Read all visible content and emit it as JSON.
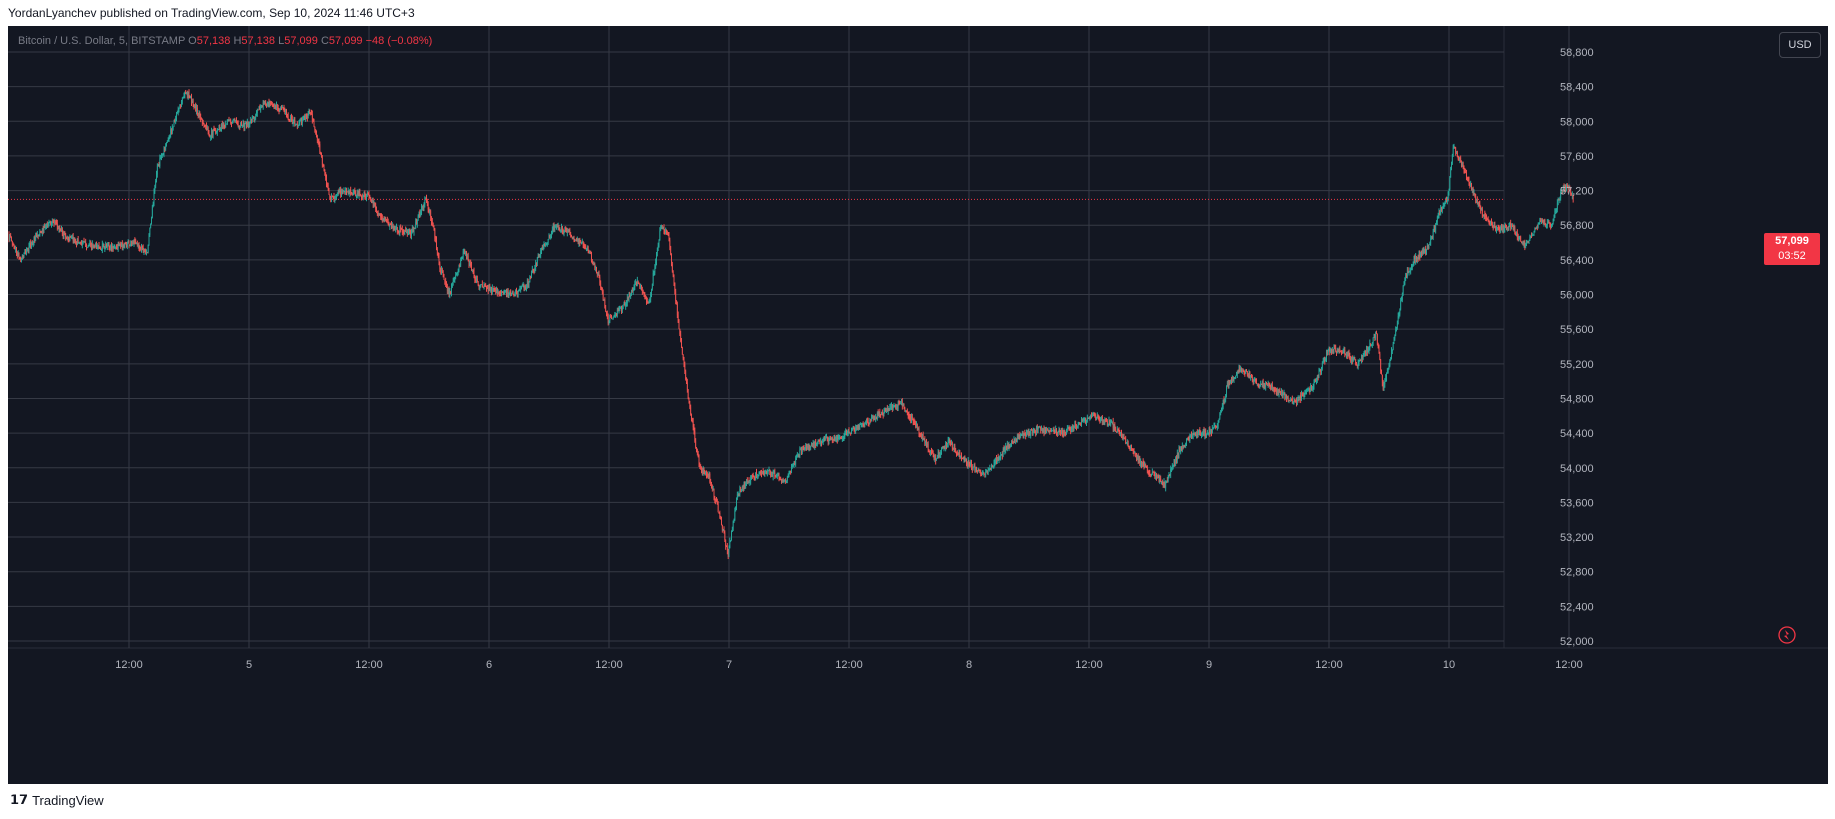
{
  "header": {
    "caption": "YordanLyanchev published on TradingView.com, Sep 10, 2024 11:46 UTC+3"
  },
  "legend": {
    "symbol": "Bitcoin / U.S. Dollar, 5, BITSTAMP",
    "o_label": "O",
    "o_value": "57,138",
    "h_label": "H",
    "h_value": "57,138",
    "l_label": "L",
    "l_value": "57,099",
    "c_label": "C",
    "c_value": "57,099",
    "change": "−48 (−0.08%)"
  },
  "currency_button": "USD",
  "last_price": {
    "price": "57,099",
    "countdown": "03:52"
  },
  "footer": {
    "brand": "TradingView"
  },
  "colors": {
    "background": "#131722",
    "grid": "#363a45",
    "up": "#26a69a",
    "down": "#ef5350",
    "price_label": "#f23645",
    "axis_text": "#b2b5be"
  },
  "chart_data": {
    "type": "candlestick",
    "title": "Bitcoin / U.S. Dollar, 5, BITSTAMP",
    "interval": "5",
    "ylim": [
      52000,
      59100
    ],
    "y_ticks": [
      52000,
      52400,
      52800,
      53200,
      53600,
      54000,
      54400,
      54800,
      55200,
      55600,
      56000,
      56400,
      56800,
      57200,
      57600,
      58000,
      58400,
      58800
    ],
    "x_ticks": [
      {
        "label": "12:00",
        "day": 0.5
      },
      {
        "label": "5",
        "day": 1.0
      },
      {
        "label": "12:00",
        "day": 1.5
      },
      {
        "label": "6",
        "day": 2.0
      },
      {
        "label": "12:00",
        "day": 2.5
      },
      {
        "label": "7",
        "day": 3.0
      },
      {
        "label": "12:00",
        "day": 3.5
      },
      {
        "label": "8",
        "day": 4.0
      },
      {
        "label": "12:00",
        "day": 4.5
      },
      {
        "label": "9",
        "day": 5.0
      },
      {
        "label": "12:00",
        "day": 5.5
      },
      {
        "label": "10",
        "day": 6.0
      },
      {
        "label": "12:00",
        "day": 6.5
      }
    ],
    "price_path": [
      {
        "day": 0.0,
        "price": 56700
      },
      {
        "day": 0.05,
        "price": 56400
      },
      {
        "day": 0.1,
        "price": 56600
      },
      {
        "day": 0.18,
        "price": 56850
      },
      {
        "day": 0.25,
        "price": 56650
      },
      {
        "day": 0.35,
        "price": 56550
      },
      {
        "day": 0.45,
        "price": 56550
      },
      {
        "day": 0.52,
        "price": 56600
      },
      {
        "day": 0.58,
        "price": 56500
      },
      {
        "day": 0.62,
        "price": 57450
      },
      {
        "day": 0.68,
        "price": 57900
      },
      {
        "day": 0.74,
        "price": 58350
      },
      {
        "day": 0.78,
        "price": 58150
      },
      {
        "day": 0.84,
        "price": 57850
      },
      {
        "day": 0.92,
        "price": 58000
      },
      {
        "day": 1.0,
        "price": 57950
      },
      {
        "day": 1.06,
        "price": 58200
      },
      {
        "day": 1.14,
        "price": 58150
      },
      {
        "day": 1.2,
        "price": 57950
      },
      {
        "day": 1.26,
        "price": 58100
      },
      {
        "day": 1.3,
        "price": 57650
      },
      {
        "day": 1.34,
        "price": 57100
      },
      {
        "day": 1.4,
        "price": 57200
      },
      {
        "day": 1.46,
        "price": 57150
      },
      {
        "day": 1.5,
        "price": 57150
      },
      {
        "day": 1.55,
        "price": 56900
      },
      {
        "day": 1.62,
        "price": 56750
      },
      {
        "day": 1.68,
        "price": 56700
      },
      {
        "day": 1.74,
        "price": 57100
      },
      {
        "day": 1.77,
        "price": 56800
      },
      {
        "day": 1.8,
        "price": 56300
      },
      {
        "day": 1.84,
        "price": 56000
      },
      {
        "day": 1.9,
        "price": 56500
      },
      {
        "day": 1.96,
        "price": 56100
      },
      {
        "day": 2.02,
        "price": 56050
      },
      {
        "day": 2.1,
        "price": 56000
      },
      {
        "day": 2.16,
        "price": 56100
      },
      {
        "day": 2.22,
        "price": 56500
      },
      {
        "day": 2.28,
        "price": 56800
      },
      {
        "day": 2.34,
        "price": 56700
      },
      {
        "day": 2.42,
        "price": 56500
      },
      {
        "day": 2.46,
        "price": 56200
      },
      {
        "day": 2.5,
        "price": 55700
      },
      {
        "day": 2.56,
        "price": 55850
      },
      {
        "day": 2.62,
        "price": 56150
      },
      {
        "day": 2.67,
        "price": 55900
      },
      {
        "day": 2.72,
        "price": 56800
      },
      {
        "day": 2.75,
        "price": 56700
      },
      {
        "day": 2.8,
        "price": 55500
      },
      {
        "day": 2.84,
        "price": 54700
      },
      {
        "day": 2.88,
        "price": 54000
      },
      {
        "day": 2.92,
        "price": 53900
      },
      {
        "day": 2.96,
        "price": 53500
      },
      {
        "day": 3.0,
        "price": 53000
      },
      {
        "day": 3.04,
        "price": 53700
      },
      {
        "day": 3.1,
        "price": 53900
      },
      {
        "day": 3.16,
        "price": 53950
      },
      {
        "day": 3.24,
        "price": 53850
      },
      {
        "day": 3.3,
        "price": 54200
      },
      {
        "day": 3.38,
        "price": 54300
      },
      {
        "day": 3.46,
        "price": 54350
      },
      {
        "day": 3.54,
        "price": 54450
      },
      {
        "day": 3.62,
        "price": 54600
      },
      {
        "day": 3.72,
        "price": 54750
      },
      {
        "day": 3.8,
        "price": 54400
      },
      {
        "day": 3.86,
        "price": 54100
      },
      {
        "day": 3.92,
        "price": 54300
      },
      {
        "day": 4.0,
        "price": 54050
      },
      {
        "day": 4.06,
        "price": 53900
      },
      {
        "day": 4.12,
        "price": 54100
      },
      {
        "day": 4.2,
        "price": 54350
      },
      {
        "day": 4.3,
        "price": 54450
      },
      {
        "day": 4.4,
        "price": 54400
      },
      {
        "day": 4.52,
        "price": 54600
      },
      {
        "day": 4.6,
        "price": 54500
      },
      {
        "day": 4.66,
        "price": 54300
      },
      {
        "day": 4.72,
        "price": 54050
      },
      {
        "day": 4.78,
        "price": 53900
      },
      {
        "day": 4.82,
        "price": 53800
      },
      {
        "day": 4.88,
        "price": 54200
      },
      {
        "day": 4.94,
        "price": 54400
      },
      {
        "day": 5.0,
        "price": 54400
      },
      {
        "day": 5.04,
        "price": 54500
      },
      {
        "day": 5.08,
        "price": 54950
      },
      {
        "day": 5.14,
        "price": 55150
      },
      {
        "day": 5.2,
        "price": 55000
      },
      {
        "day": 5.28,
        "price": 54900
      },
      {
        "day": 5.36,
        "price": 54750
      },
      {
        "day": 5.44,
        "price": 54950
      },
      {
        "day": 5.5,
        "price": 55350
      },
      {
        "day": 5.56,
        "price": 55350
      },
      {
        "day": 5.62,
        "price": 55200
      },
      {
        "day": 5.66,
        "price": 55350
      },
      {
        "day": 5.7,
        "price": 55550
      },
      {
        "day": 5.73,
        "price": 54900
      },
      {
        "day": 5.77,
        "price": 55400
      },
      {
        "day": 5.82,
        "price": 56200
      },
      {
        "day": 5.86,
        "price": 56400
      },
      {
        "day": 5.92,
        "price": 56550
      },
      {
        "day": 5.97,
        "price": 57000
      },
      {
        "day": 6.0,
        "price": 57150
      },
      {
        "day": 6.02,
        "price": 57700
      },
      {
        "day": 6.05,
        "price": 57550
      },
      {
        "day": 6.1,
        "price": 57200
      },
      {
        "day": 6.15,
        "price": 56900
      },
      {
        "day": 6.2,
        "price": 56750
      },
      {
        "day": 6.26,
        "price": 56800
      },
      {
        "day": 6.32,
        "price": 56550
      },
      {
        "day": 6.38,
        "price": 56850
      },
      {
        "day": 6.43,
        "price": 56800
      },
      {
        "day": 6.47,
        "price": 57200
      },
      {
        "day": 6.5,
        "price": 57250
      },
      {
        "day": 6.52,
        "price": 57099
      }
    ],
    "last_close": 57099
  }
}
